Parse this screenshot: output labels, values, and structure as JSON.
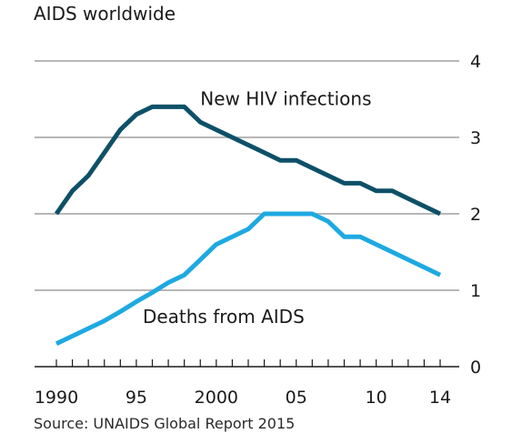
{
  "title": "AIDS worldwide",
  "source": "Source: UNAIDS Global Report 2015",
  "chart_data": {
    "type": "line",
    "title": "AIDS worldwide",
    "xlabel": "",
    "ylabel": "",
    "xlim": [
      1990,
      2014
    ],
    "ylim": [
      0,
      4
    ],
    "x_ticks": [
      1990,
      1995,
      2000,
      2005,
      2010,
      2014
    ],
    "x_tick_labels": [
      "1990",
      "95",
      "2000",
      "05",
      "10",
      "14"
    ],
    "y_ticks": [
      0,
      1,
      2,
      3,
      4
    ],
    "y_tick_labels": [
      "0",
      "1",
      "2",
      "3",
      "4"
    ],
    "y_axis_side": "right",
    "grid": "horizontal",
    "colors": {
      "new_infections": "#0d5068",
      "deaths": "#1ea9e1",
      "grid": "#b7b7b7",
      "axis": "#1a1a1a"
    },
    "x": [
      1990,
      1991,
      1992,
      1993,
      1994,
      1995,
      1996,
      1997,
      1998,
      1999,
      2000,
      2001,
      2002,
      2003,
      2004,
      2005,
      2006,
      2007,
      2008,
      2009,
      2010,
      2011,
      2012,
      2013,
      2014
    ],
    "series": [
      {
        "name": "New HIV infections",
        "key": "new_infections",
        "values": [
          2.0,
          2.3,
          2.5,
          2.8,
          3.1,
          3.3,
          3.4,
          3.4,
          3.4,
          3.2,
          3.1,
          3.0,
          2.9,
          2.8,
          2.7,
          2.7,
          2.6,
          2.5,
          2.4,
          2.4,
          2.3,
          2.3,
          2.2,
          2.1,
          2.0
        ]
      },
      {
        "name": "Deaths from AIDS",
        "key": "deaths",
        "values": [
          0.3,
          0.4,
          0.5,
          0.6,
          0.72,
          0.85,
          0.97,
          1.1,
          1.2,
          1.4,
          1.6,
          1.7,
          1.8,
          2.0,
          2.0,
          2.0,
          2.0,
          1.9,
          1.7,
          1.7,
          1.6,
          1.5,
          1.4,
          1.3,
          1.2
        ]
      }
    ]
  }
}
